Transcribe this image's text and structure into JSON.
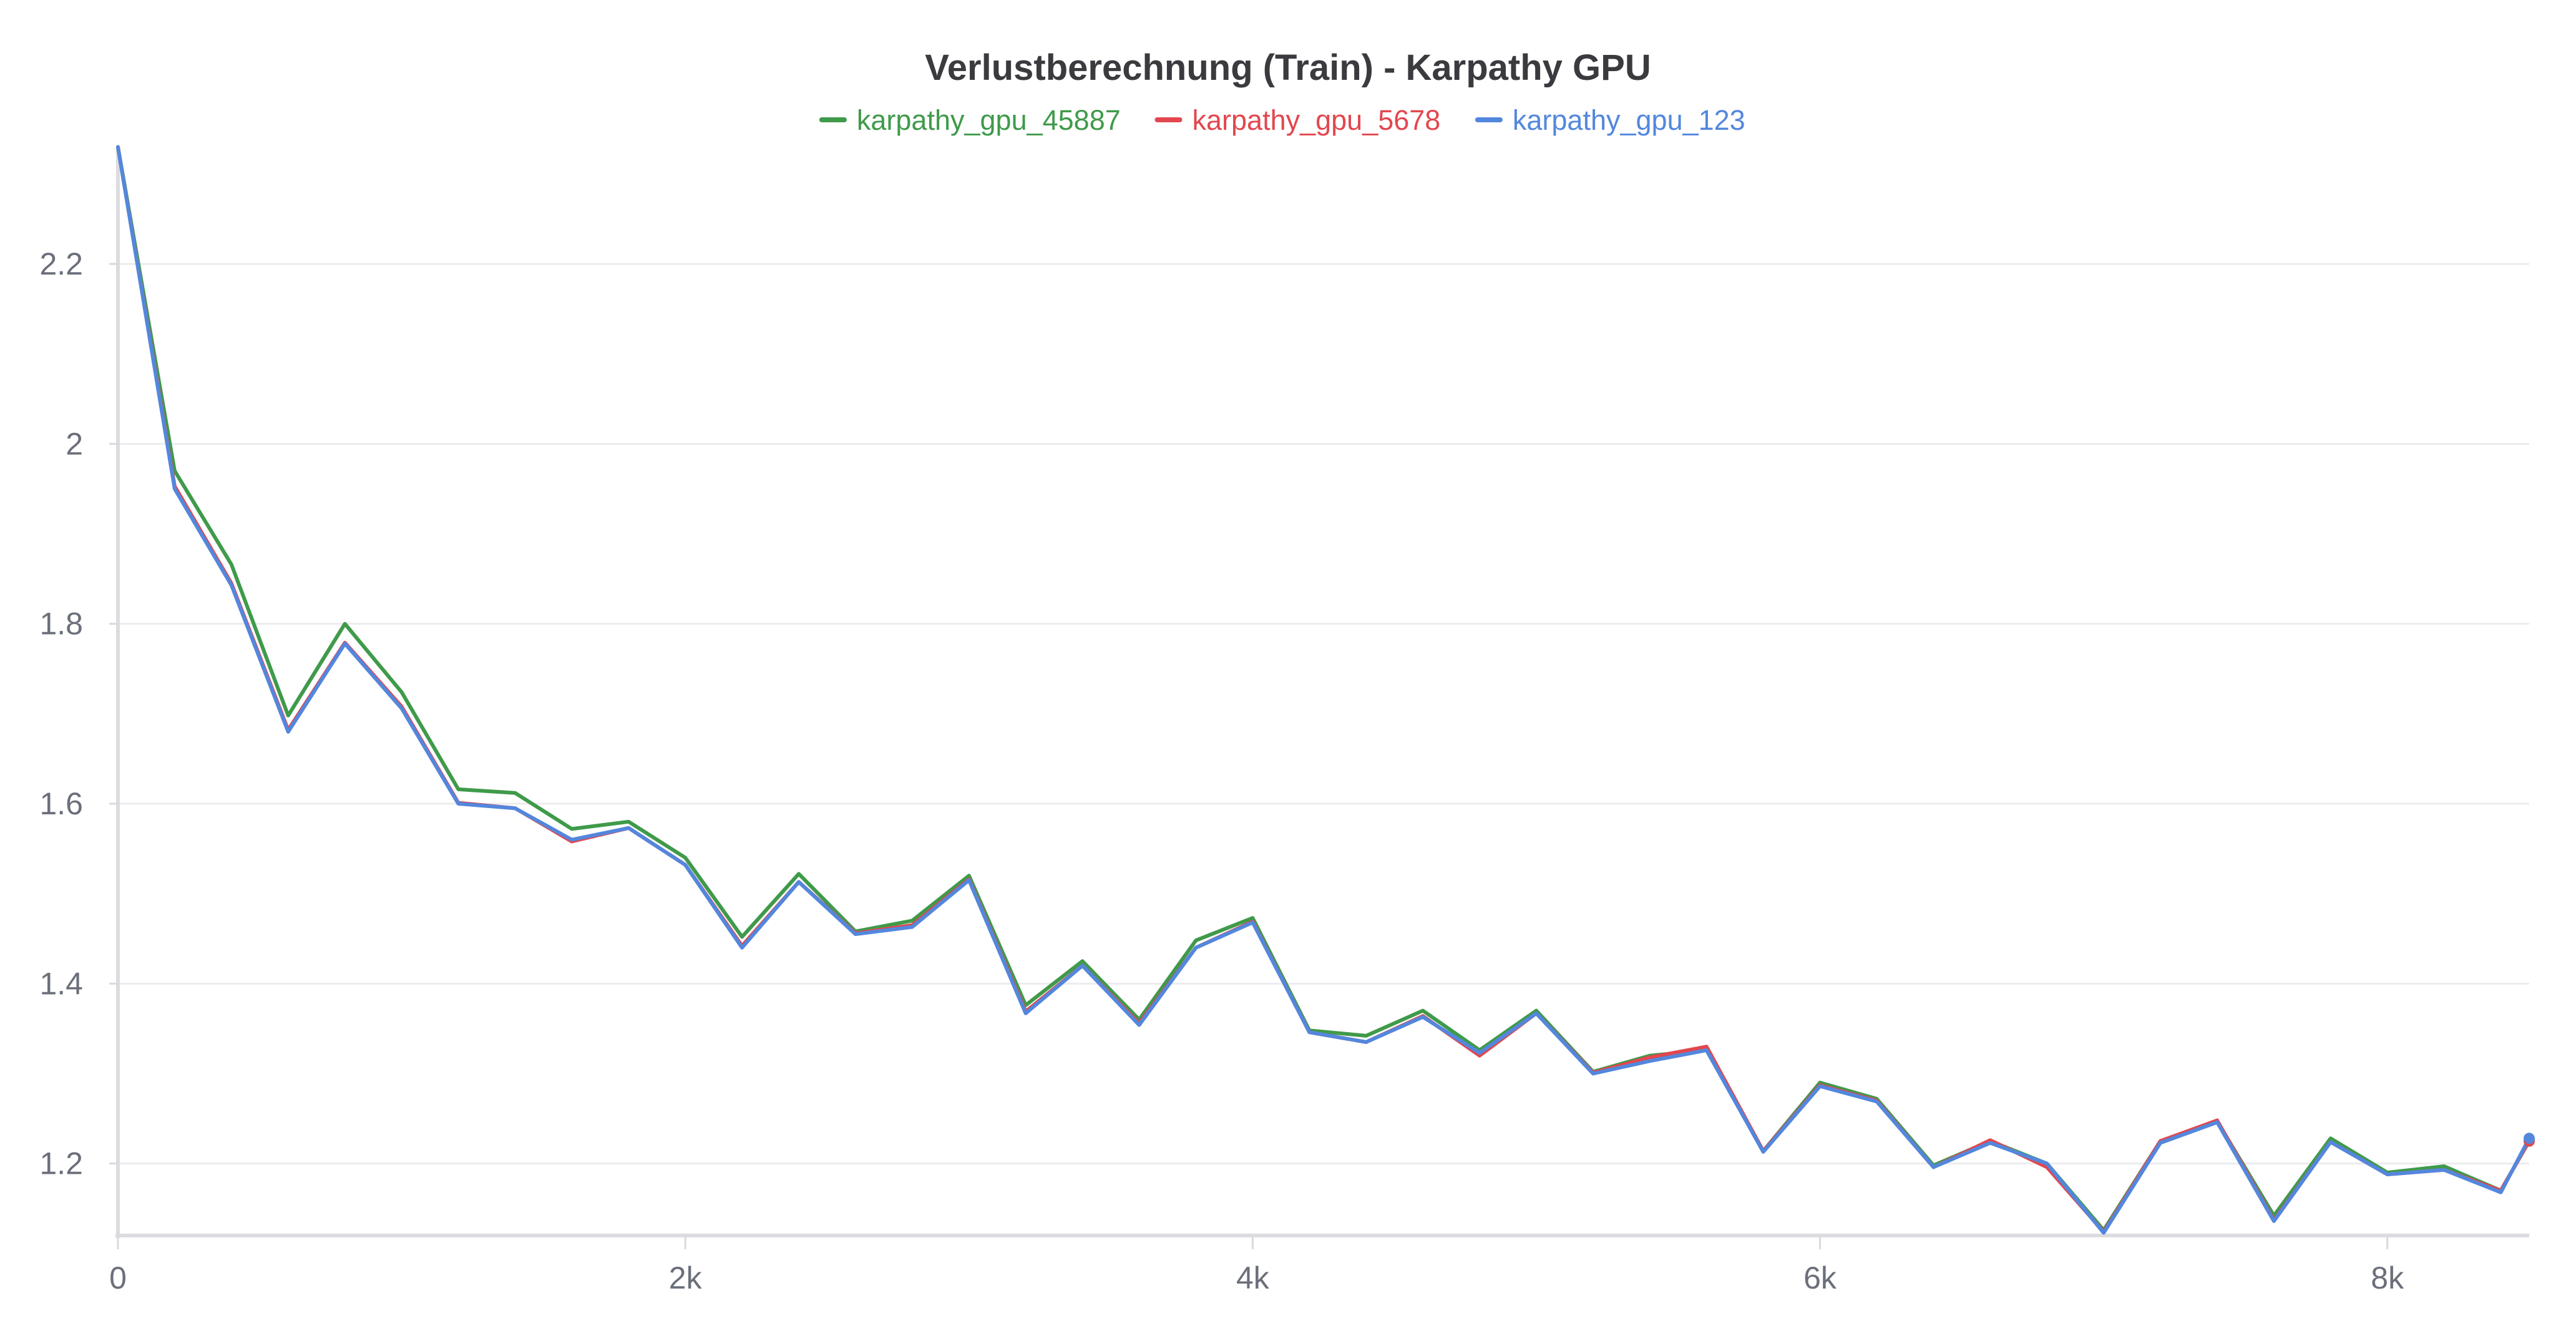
{
  "chart_data": {
    "type": "line",
    "title": "Verlustberechnung (Train) - Karpathy GPU",
    "xlabel": "",
    "ylabel": "",
    "xlim": [
      0,
      8500
    ],
    "ylim": [
      1.12,
      2.32
    ],
    "x_ticks": [
      0,
      2000,
      4000,
      6000,
      8000
    ],
    "x_tick_labels": [
      "0",
      "2k",
      "4k",
      "6k",
      "8k"
    ],
    "y_ticks": [
      1.2,
      1.4,
      1.6,
      1.8,
      2.0,
      2.2
    ],
    "y_tick_labels": [
      "1.2",
      "1.4",
      "1.6",
      "1.8",
      "2",
      "2.2"
    ],
    "grid": "horizontal",
    "legend": "top-center",
    "x": [
      0,
      200,
      400,
      600,
      800,
      1000,
      1200,
      1400,
      1600,
      1800,
      2000,
      2200,
      2400,
      2600,
      2800,
      3000,
      3200,
      3400,
      3600,
      3800,
      4000,
      4200,
      4400,
      4600,
      4800,
      5000,
      5200,
      5400,
      5600,
      5800,
      6000,
      6200,
      6400,
      6600,
      6800,
      7000,
      7200,
      7400,
      7600,
      7800,
      8000,
      8200,
      8400,
      8500
    ],
    "series": [
      {
        "name": "karpathy_gpu_45887",
        "color": "#3f9a4a",
        "values": [
          2.33,
          1.97,
          1.866,
          1.698,
          1.8,
          1.724,
          1.616,
          1.612,
          1.572,
          1.58,
          1.54,
          1.452,
          1.522,
          1.458,
          1.47,
          1.52,
          1.376,
          1.425,
          1.36,
          1.448,
          1.473,
          1.348,
          1.342,
          1.37,
          1.326,
          1.37,
          1.302,
          1.32,
          1.326,
          1.214,
          1.29,
          1.272,
          1.198,
          1.225,
          1.2,
          1.126,
          1.225,
          1.247,
          1.142,
          1.228,
          1.19,
          1.197,
          1.17,
          1.225
        ]
      },
      {
        "name": "karpathy_gpu_5678",
        "color": "#e2474f",
        "values": [
          2.33,
          1.953,
          1.845,
          1.682,
          1.779,
          1.708,
          1.601,
          1.595,
          1.558,
          1.573,
          1.532,
          1.442,
          1.513,
          1.456,
          1.465,
          1.516,
          1.369,
          1.42,
          1.356,
          1.44,
          1.469,
          1.346,
          1.335,
          1.364,
          1.32,
          1.367,
          1.301,
          1.318,
          1.33,
          1.214,
          1.287,
          1.27,
          1.196,
          1.226,
          1.196,
          1.124,
          1.225,
          1.248,
          1.137,
          1.224,
          1.188,
          1.193,
          1.17,
          1.225
        ]
      },
      {
        "name": "karpathy_gpu_123",
        "color": "#5387dd",
        "values": [
          2.33,
          1.95,
          1.843,
          1.68,
          1.778,
          1.706,
          1.6,
          1.595,
          1.56,
          1.573,
          1.532,
          1.44,
          1.513,
          1.455,
          1.463,
          1.515,
          1.367,
          1.42,
          1.354,
          1.44,
          1.468,
          1.346,
          1.335,
          1.363,
          1.323,
          1.367,
          1.3,
          1.314,
          1.326,
          1.213,
          1.286,
          1.269,
          1.196,
          1.223,
          1.2,
          1.123,
          1.223,
          1.246,
          1.136,
          1.224,
          1.188,
          1.193,
          1.168,
          1.228
        ]
      }
    ]
  }
}
